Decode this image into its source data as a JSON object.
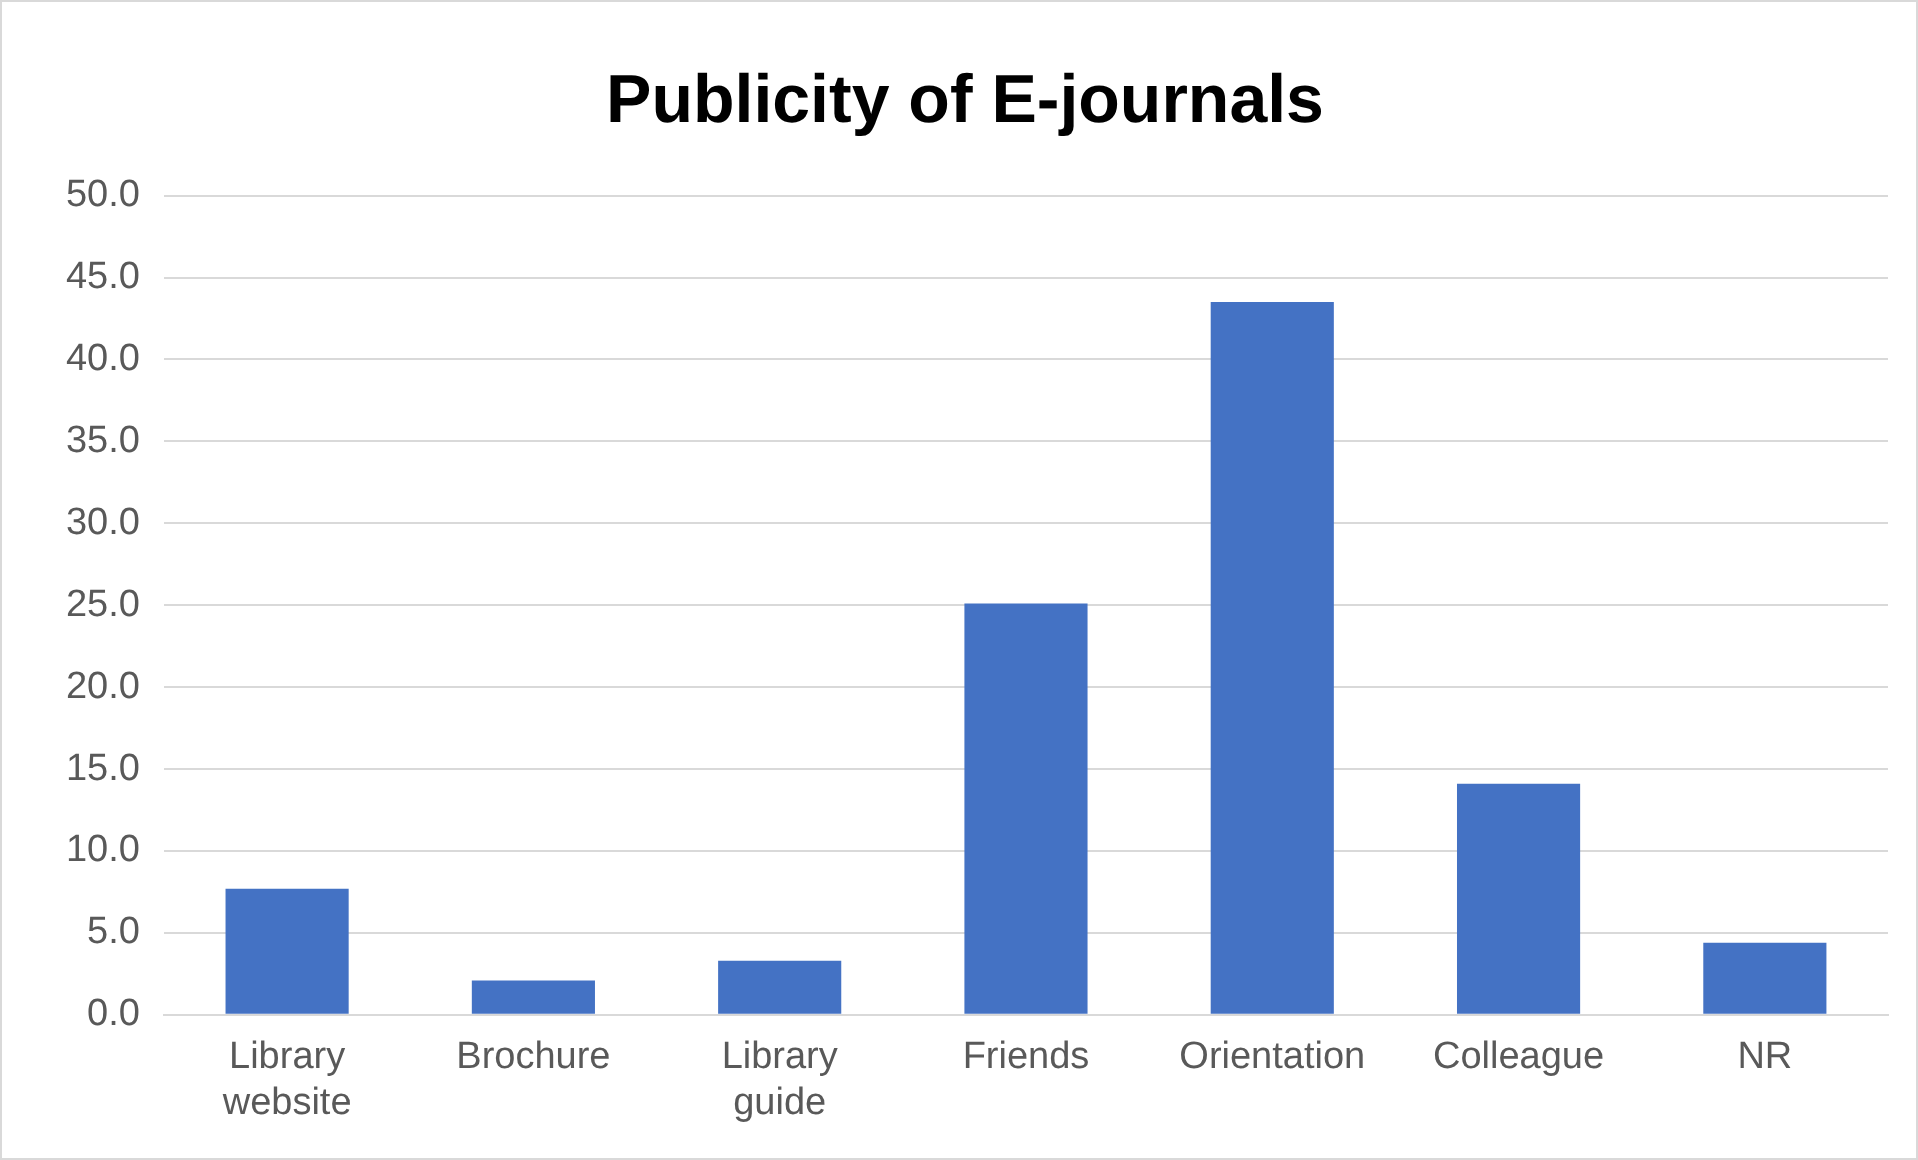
{
  "chart_data": {
    "type": "bar",
    "title": "Publicity of E-journals",
    "categories": [
      "Library website",
      "Brochure",
      "Library guide",
      "Friends",
      "Orientation",
      "Colleague",
      "NR"
    ],
    "values": [
      7.7,
      2.1,
      3.3,
      25.1,
      43.5,
      14.1,
      4.4
    ],
    "color": "#4472c4",
    "ylim": [
      0,
      50
    ],
    "yticks": [
      {
        "value": 0,
        "label": "0.0"
      },
      {
        "value": 5,
        "label": "5.0"
      },
      {
        "value": 10,
        "label": "10.0"
      },
      {
        "value": 15,
        "label": "15.0"
      },
      {
        "value": 20,
        "label": "20.0"
      },
      {
        "value": 25,
        "label": "25.0"
      },
      {
        "value": 30,
        "label": "30.0"
      },
      {
        "value": 35,
        "label": "35.0"
      },
      {
        "value": 40,
        "label": "40.0"
      },
      {
        "value": 45,
        "label": "45.0"
      },
      {
        "value": 50,
        "label": "50.0"
      }
    ],
    "grid": "y"
  }
}
